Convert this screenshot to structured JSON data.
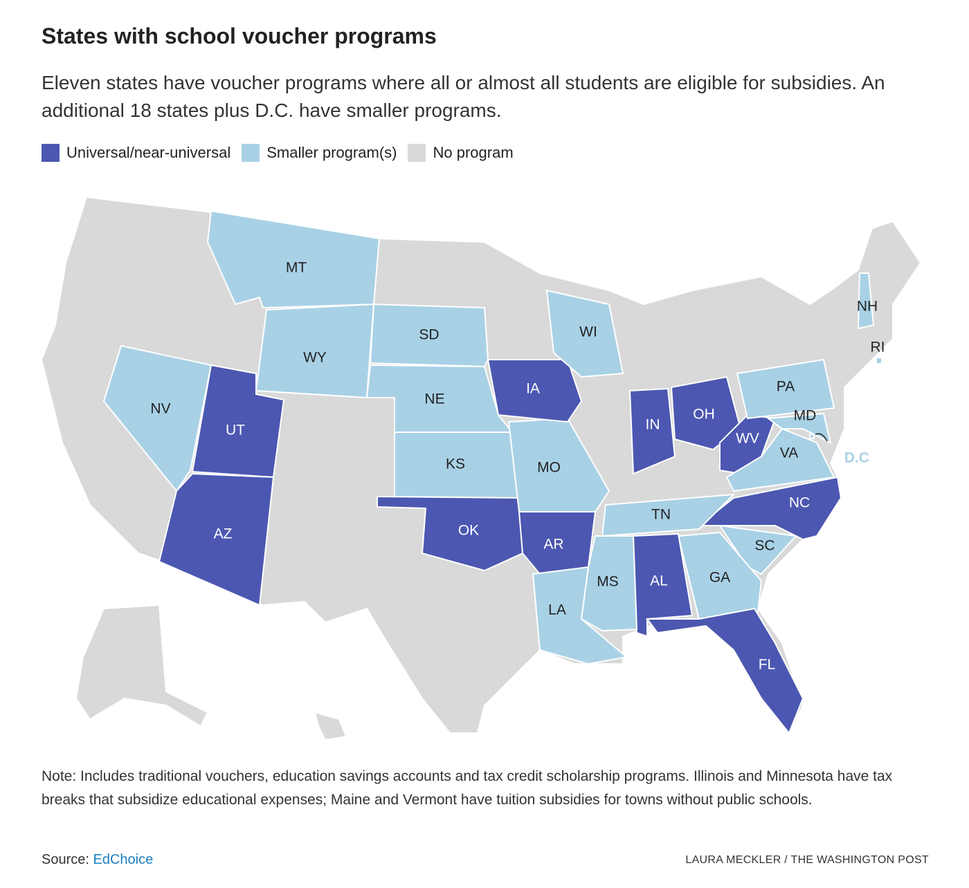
{
  "header": {
    "title": "States with school voucher programs",
    "subtitle": "Eleven states have voucher programs where all or almost all students are eligible for subsidies. An additional 18 states plus D.C. have smaller programs."
  },
  "legend": [
    {
      "label": "Universal/near-universal",
      "color": "#4c57b1"
    },
    {
      "label": "Smaller program(s)",
      "color": "#a8d1e6"
    },
    {
      "label": "No program",
      "color": "#d9d9d9"
    }
  ],
  "map": {
    "states": [
      {
        "label": "MT",
        "category": 1
      },
      {
        "label": "WY",
        "category": 1
      },
      {
        "label": "SD",
        "category": 1
      },
      {
        "label": "NE",
        "category": 1
      },
      {
        "label": "KS",
        "category": 1
      },
      {
        "label": "NV",
        "category": 1
      },
      {
        "label": "UT",
        "category": 0
      },
      {
        "label": "AZ",
        "category": 0
      },
      {
        "label": "OK",
        "category": 0
      },
      {
        "label": "AR",
        "category": 0
      },
      {
        "label": "MO",
        "category": 1
      },
      {
        "label": "IA",
        "category": 0
      },
      {
        "label": "WI",
        "category": 1
      },
      {
        "label": "IN",
        "category": 0
      },
      {
        "label": "OH",
        "category": 0
      },
      {
        "label": "WV",
        "category": 0
      },
      {
        "label": "PA",
        "category": 1
      },
      {
        "label": "MD",
        "category": 1
      },
      {
        "label": "VA",
        "category": 1
      },
      {
        "label": "NC",
        "category": 0
      },
      {
        "label": "TN",
        "category": 1
      },
      {
        "label": "SC",
        "category": 1
      },
      {
        "label": "GA",
        "category": 1
      },
      {
        "label": "AL",
        "category": 0
      },
      {
        "label": "MS",
        "category": 1
      },
      {
        "label": "LA",
        "category": 1
      },
      {
        "label": "FL",
        "category": 0
      },
      {
        "label": "NH",
        "category": 1
      },
      {
        "label": "RI",
        "category": 1
      },
      {
        "label": "D.C",
        "category": 1
      }
    ]
  },
  "note": "Note: Includes traditional vouchers, education savings accounts and tax credit scholarship programs. Illinois and Minnesota have tax breaks that subsidize educational expenses; Maine and Vermont have tuition subsidies for towns without public schools.",
  "source": {
    "prefix": "Source:",
    "link": "EdChoice"
  },
  "credit": "LAURA MECKLER / THE WASHINGTON POST"
}
